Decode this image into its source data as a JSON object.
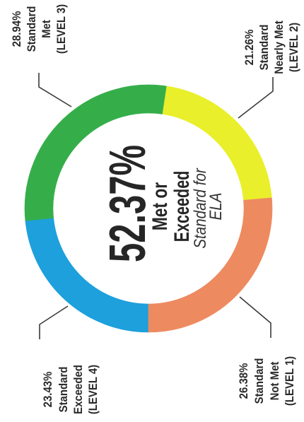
{
  "chart_data": {
    "type": "pie",
    "donut": true,
    "center_label": {
      "value": "52.37%",
      "line1": "Met or",
      "line2": "Exceeded",
      "line3": "Standard for",
      "line4": "ELA"
    },
    "slices": [
      {
        "value": 23.43,
        "value_label": "23.43%",
        "name_lines": [
          "Standard",
          "Exceeded",
          "(LEVEL 4)"
        ],
        "color": "#1da0dc"
      },
      {
        "value": 28.94,
        "value_label": "28.94%",
        "name_lines": [
          "Standard",
          "Met",
          "(LEVEL 3)"
        ],
        "color": "#35ae4a"
      },
      {
        "value": 21.26,
        "value_label": "21.26%",
        "name_lines": [
          "Standard",
          "Nearly Met",
          "(LEVEL 2)"
        ],
        "color": "#e9ef2a"
      },
      {
        "value": 26.38,
        "value_label": "26.38%",
        "name_lines": [
          "Standard",
          "Not Met",
          "(LEVEL 1)"
        ],
        "color": "#ee8a5f"
      }
    ]
  }
}
